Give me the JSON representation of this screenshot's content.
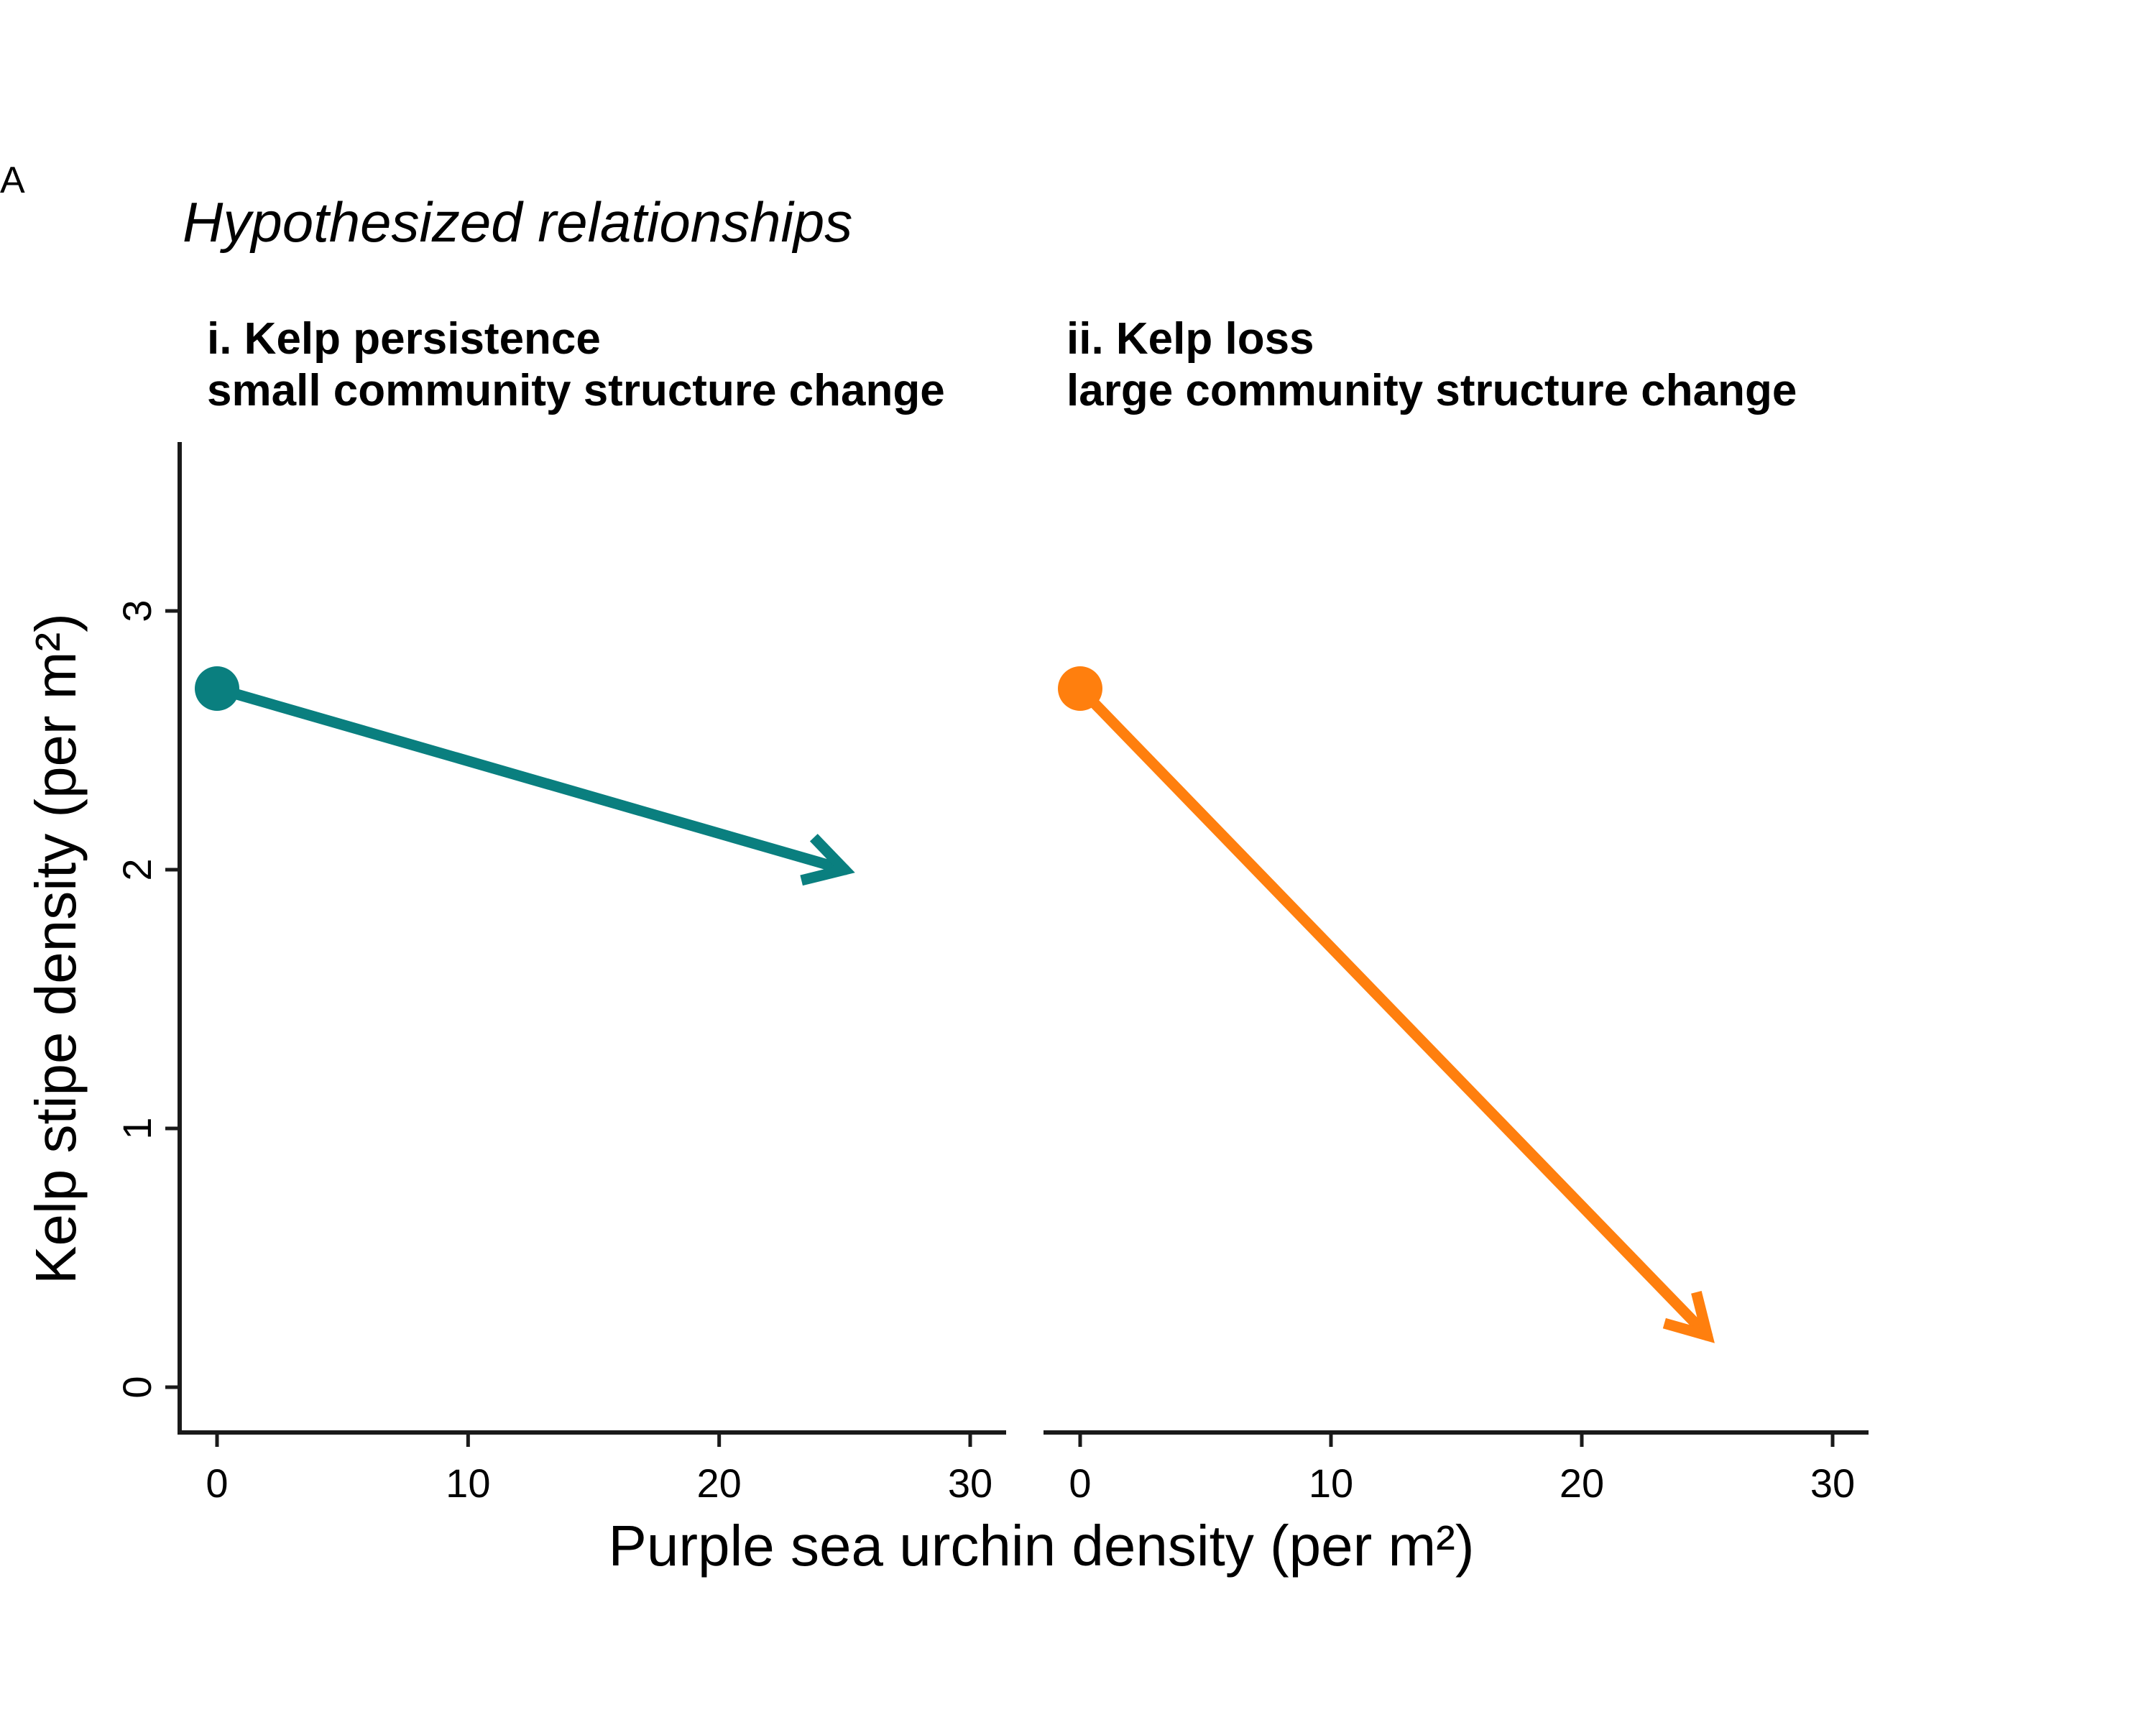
{
  "figure": {
    "panel_letter": "A",
    "title": "Hypothesized relationships",
    "xlabel": "Purple sea urchin density (per m²)",
    "ylabel": "Kelp stipe density (per m²)"
  },
  "chart_data": [
    {
      "type": "line",
      "facet": "i",
      "title_lines": [
        "i. Kelp persistence",
        "small community structure change"
      ],
      "xlim": [
        0,
        30
      ],
      "ylim": [
        0,
        3
      ],
      "xticks": [
        "0",
        "10",
        "20",
        "30"
      ],
      "yticks": [
        "0",
        "1",
        "2",
        "3"
      ],
      "color": "#0A7F7F",
      "start": {
        "x": 0,
        "y": 2.7
      },
      "end": {
        "x": 25,
        "y": 2.0
      }
    },
    {
      "type": "line",
      "facet": "ii",
      "title_lines": [
        "ii. Kelp loss",
        "large community structure change"
      ],
      "xlim": [
        0,
        30
      ],
      "ylim": [
        0,
        3
      ],
      "xticks": [
        "0",
        "10",
        "20",
        "30"
      ],
      "yticks": [],
      "color": "#FF7F0E",
      "start": {
        "x": 0,
        "y": 2.7
      },
      "end": {
        "x": 25,
        "y": 0.2
      }
    }
  ]
}
